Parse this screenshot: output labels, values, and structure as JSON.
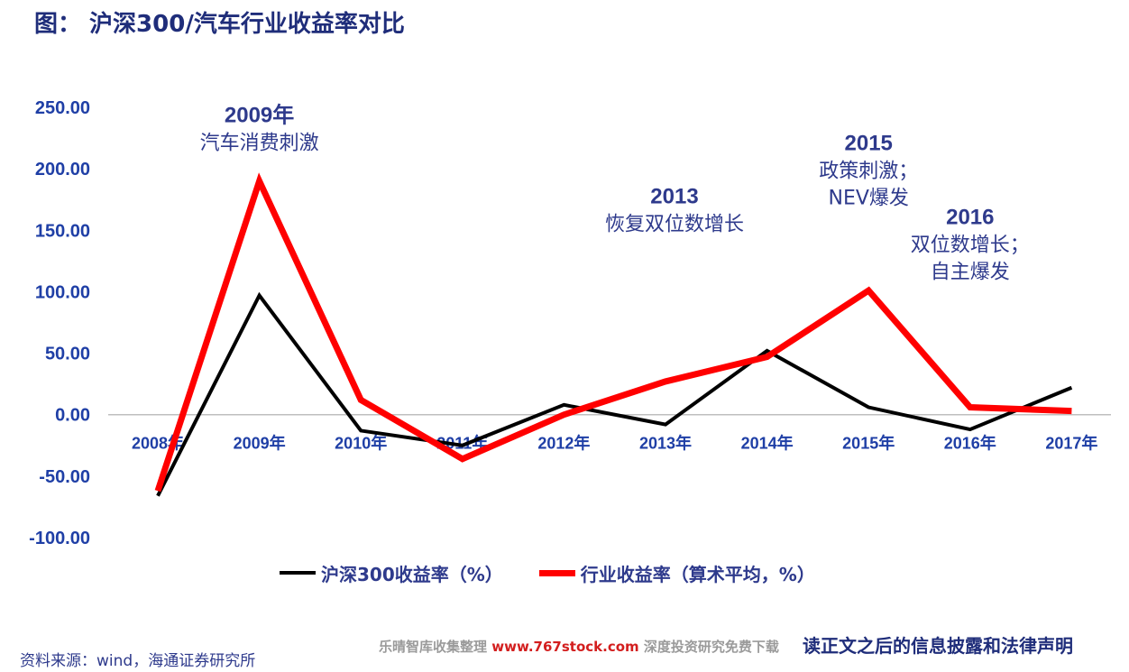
{
  "title": "图： 沪深300/汽车行业收益率对比",
  "chart_data": {
    "type": "line",
    "categories": [
      "2008年",
      "2009年",
      "2010年",
      "2011年",
      "2012年",
      "2013年",
      "2014年",
      "2015年",
      "2016年",
      "2017年"
    ],
    "series": [
      {
        "name": "沪深300收益率（%）",
        "color": "#000000",
        "values": [
          -66,
          97,
          -13,
          -25,
          8,
          -8,
          52,
          6,
          -12,
          22
        ]
      },
      {
        "name": "行业收益率（算术平均，%）",
        "color": "#ff0000",
        "values": [
          -62,
          190,
          12,
          -36,
          0,
          27,
          47,
          101,
          6,
          3
        ]
      }
    ],
    "ylim": [
      -100,
      250
    ],
    "yticks": [
      "250.00",
      "200.00",
      "150.00",
      "100.00",
      "50.00",
      "0.00",
      "-50.00",
      "-100.00"
    ],
    "ytick_values": [
      250,
      200,
      150,
      100,
      50,
      0,
      -50,
      -100
    ],
    "legend": "bottom",
    "grid": false,
    "annotations": [
      {
        "category": "2009年",
        "y": 238,
        "lines": [
          "2009年",
          "汽车消费刺激"
        ]
      },
      {
        "category": "2013年",
        "y": 172,
        "lines": [
          "2013",
          "恢复双位数增长"
        ]
      },
      {
        "category": "2015年",
        "y": 215,
        "lines": [
          "2015",
          "政策刺激；",
          "NEV爆发"
        ]
      },
      {
        "category": "2016年",
        "y": 155,
        "lines": [
          "2016",
          "双位数增长；",
          "自主爆发"
        ]
      }
    ]
  },
  "source": "资料来源：wind，海通证券研究所",
  "watermark": {
    "left": "乐晴智库收集整理",
    "url": "www.767stock.com",
    "right": "深度投资研究免费下载"
  },
  "disclaimer": "读正文之后的信息披露和法律声明"
}
